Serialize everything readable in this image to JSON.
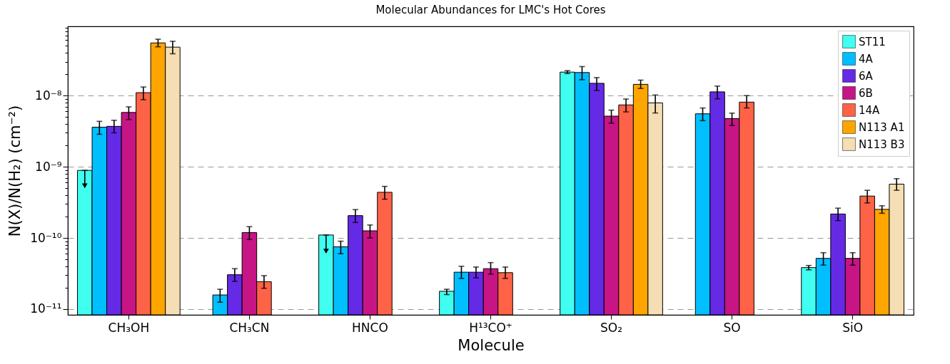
{
  "chart_data": {
    "type": "bar",
    "title": "Molecular Abundances for LMC's Hot Cores",
    "xlabel": "Molecule",
    "ylabel": "N(X)/N(H₂) (cm⁻²)",
    "categories": [
      "CH₃OH",
      "CH₃CN",
      "HNCO",
      "H¹³CO⁺",
      "SO₂",
      "SO",
      "SiO"
    ],
    "log": true,
    "grid": "y",
    "legend": "top right",
    "ylim": [
      8.3e-12,
      9.4e-08
    ],
    "yticks": [
      {
        "value": 1e-11,
        "label": "10⁻¹¹"
      },
      {
        "value": 2e-11,
        "label": null
      },
      {
        "value": 3e-11,
        "label": null
      },
      {
        "value": 4e-11,
        "label": null
      },
      {
        "value": 5e-11,
        "label": null
      },
      {
        "value": 6e-11,
        "label": null
      },
      {
        "value": 7e-11,
        "label": null
      },
      {
        "value": 8e-11,
        "label": null
      },
      {
        "value": 9e-11,
        "label": null
      },
      {
        "value": 1e-10,
        "label": "10⁻¹⁰"
      },
      {
        "value": 2e-10,
        "label": null
      },
      {
        "value": 3e-10,
        "label": null
      },
      {
        "value": 4e-10,
        "label": null
      },
      {
        "value": 5e-10,
        "label": null
      },
      {
        "value": 6e-10,
        "label": null
      },
      {
        "value": 7e-10,
        "label": null
      },
      {
        "value": 8e-10,
        "label": null
      },
      {
        "value": 9e-10,
        "label": null
      },
      {
        "value": 1e-09,
        "label": "10⁻⁹"
      },
      {
        "value": 2e-09,
        "label": null
      },
      {
        "value": 3e-09,
        "label": null
      },
      {
        "value": 4e-09,
        "label": null
      },
      {
        "value": 5e-09,
        "label": null
      },
      {
        "value": 6e-09,
        "label": null
      },
      {
        "value": 7e-09,
        "label": null
      },
      {
        "value": 8e-09,
        "label": null
      },
      {
        "value": 9e-09,
        "label": null
      },
      {
        "value": 1e-08,
        "label": "10⁻⁸"
      },
      {
        "value": 2e-08,
        "label": null
      },
      {
        "value": 3e-08,
        "label": null
      },
      {
        "value": 4e-08,
        "label": null
      },
      {
        "value": 5e-08,
        "label": null
      },
      {
        "value": 6e-08,
        "label": null
      },
      {
        "value": 7e-08,
        "label": null
      },
      {
        "value": 8e-08,
        "label": null
      },
      {
        "value": 9e-08,
        "label": null
      }
    ],
    "series": [
      {
        "name": "ST11",
        "color": "#40fff0",
        "values": [
          8.9e-10,
          null,
          1.1e-10,
          1.78e-11,
          2.14e-08,
          null,
          3.83e-11
        ],
        "errors": [
          [
            5.4e-10,
            8.9e-10
          ],
          null,
          [
            6.5e-11,
            1.1e-10
          ],
          [
            1.6e-11,
            1.9e-11
          ],
          [
            2.04e-08,
            2.24e-08
          ],
          null,
          [
            3.56e-11,
            4.1e-11
          ]
        ]
      },
      {
        "name": "4A",
        "color": "#00bfff",
        "values": [
          3.6e-09,
          1.58e-11,
          7.5e-11,
          3.3e-11,
          2.11e-08,
          5.55e-09,
          5.16e-11
        ],
        "errors": [
          [
            2.86e-09,
            4.35e-09
          ],
          [
            1.25e-11,
            1.9e-11
          ],
          [
            6e-11,
            9e-11
          ],
          [
            2.7e-11,
            4e-11
          ],
          [
            1.67e-08,
            2.56e-08
          ],
          [
            4.45e-09,
            6.7e-09
          ],
          [
            4.15e-11,
            6.2e-11
          ]
        ]
      },
      {
        "name": "6A",
        "color": "#652ae6",
        "values": [
          3.7e-09,
          3.04e-11,
          2.06e-10,
          3.3e-11,
          1.49e-08,
          1.13e-08,
          2.17e-10
        ],
        "errors": [
          [
            3e-09,
            4.5e-09
          ],
          [
            2.45e-11,
            3.7e-11
          ],
          [
            1.65e-10,
            2.5e-10
          ],
          [
            2.75e-11,
            3.9e-11
          ],
          [
            1.18e-08,
            1.79e-08
          ],
          [
            9e-09,
            1.36e-08
          ],
          [
            1.75e-10,
            2.62e-10
          ]
        ]
      },
      {
        "name": "6B",
        "color": "#c71585",
        "values": [
          5.8e-09,
          1.19e-10,
          1.26e-10,
          3.7e-11,
          5.15e-09,
          4.75e-09,
          5.16e-11
        ],
        "errors": [
          [
            4.6e-09,
            6.95e-09
          ],
          [
            9.5e-11,
            1.44e-10
          ],
          [
            1e-10,
            1.52e-10
          ],
          [
            3.1e-11,
            4.5e-11
          ],
          [
            4.1e-09,
            6.25e-09
          ],
          [
            3.8e-09,
            5.67e-09
          ],
          [
            4.15e-11,
            6.2e-11
          ]
        ]
      },
      {
        "name": "14A",
        "color": "#ff6347",
        "values": [
          1.1e-08,
          2.43e-11,
          4.38e-10,
          3.25e-11,
          7.4e-09,
          8.1e-09,
          3.88e-10
        ],
        "errors": [
          [
            8.75e-09,
            1.32e-08
          ],
          [
            1.96e-11,
            2.95e-11
          ],
          [
            3.5e-10,
            5.3e-10
          ],
          [
            2.7e-11,
            3.9e-11
          ],
          [
            5.9e-09,
            8.95e-09
          ],
          [
            6.7e-09,
            1e-08
          ],
          [
            3.1e-10,
            4.67e-10
          ]
        ]
      },
      {
        "name": "N113 A1",
        "color": "#ffa500",
        "values": [
          5.5e-08,
          null,
          null,
          null,
          1.44e-08,
          null,
          2.52e-10
        ],
        "errors": [
          [
            4.85e-08,
            6.2e-08
          ],
          null,
          null,
          null,
          [
            1.26e-08,
            1.65e-08
          ],
          null,
          [
            2.22e-10,
            2.83e-10
          ]
        ]
      },
      {
        "name": "N113 B3",
        "color": "#f5deb3",
        "values": [
          4.8e-08,
          null,
          null,
          null,
          7.9e-09,
          null,
          5.7e-10
        ],
        "errors": [
          [
            3.87e-08,
            5.8e-08
          ],
          null,
          null,
          null,
          [
            5.7e-09,
            1.02e-08
          ],
          null,
          [
            4.67e-10,
            6.8e-10
          ]
        ]
      }
    ]
  }
}
